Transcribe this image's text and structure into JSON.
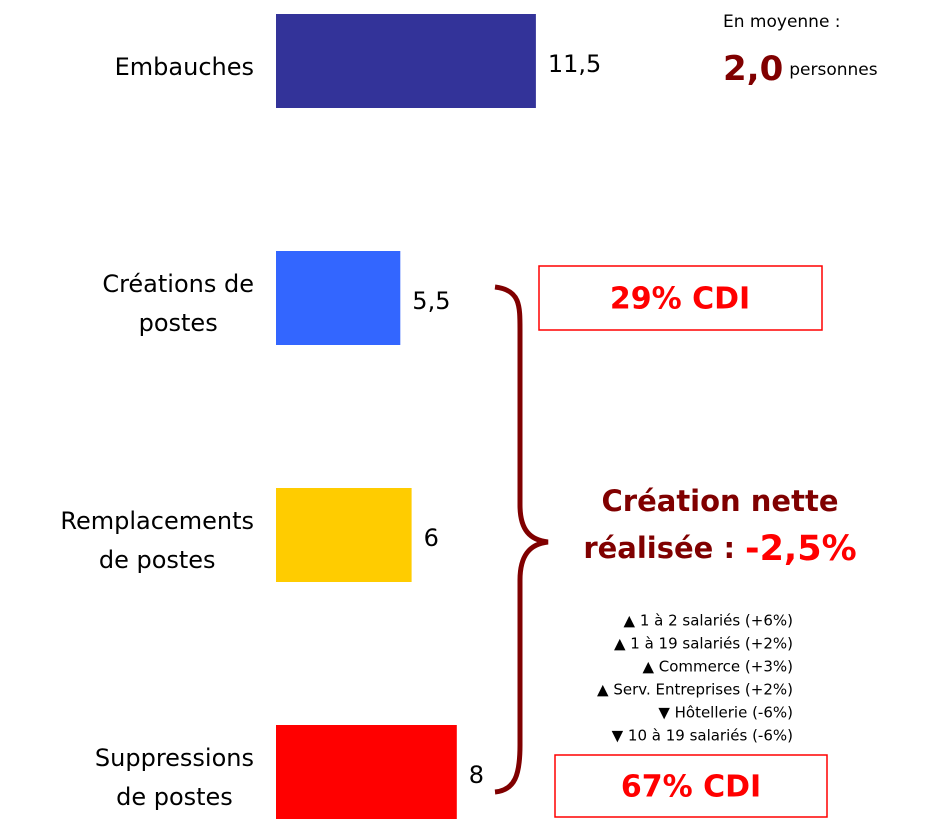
{
  "chart_data": {
    "type": "bar",
    "categories": [
      "Embauches",
      "Créations de\npostes",
      "Remplacements\nde postes",
      "Suppressions\nde postes"
    ],
    "values": [
      11.5,
      5.5,
      6,
      8
    ],
    "value_labels": [
      "11,5",
      "5,5",
      "6",
      "8"
    ],
    "colors": [
      "#333399",
      "#3366ff",
      "#ffcc00",
      "#ff0000"
    ],
    "annotations": {
      "average_label": "En moyenne :",
      "average_value": "2,0",
      "average_unit": "personnes",
      "boxes": [
        "29% CDI",
        "67% CDI"
      ],
      "net_line1": "Création nette",
      "net_line2": "réalisée :",
      "net_value": "-2,5%",
      "details": [
        "▲ 1 à 2 salariés (+6%)",
        "▲ 1 à 19 salariés (+2%)",
        "▲ Commerce (+3%)",
        "▲ Serv. Entreprises (+2%)",
        "▼ Hôtellerie (-6%)",
        "▼ 10 à 19 salariés (-6%)"
      ]
    }
  }
}
